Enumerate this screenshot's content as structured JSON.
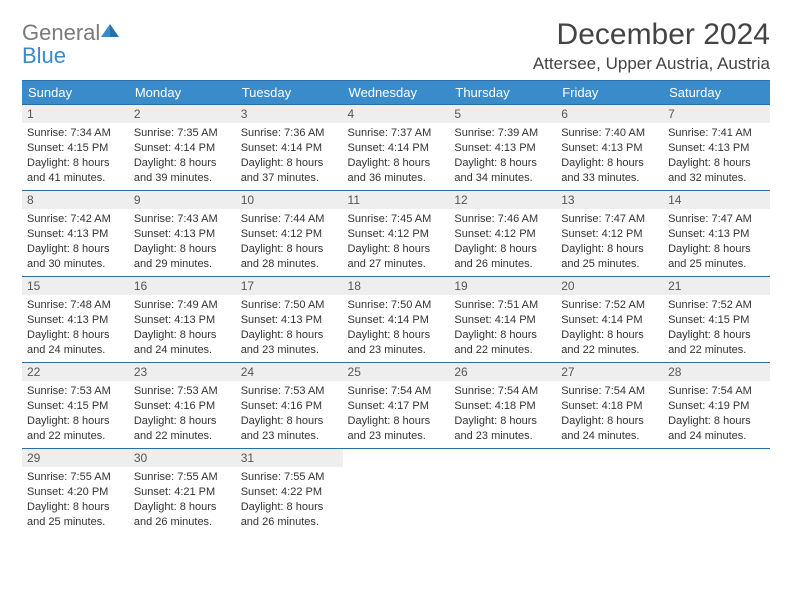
{
  "brand": {
    "general": "General",
    "blue": "Blue"
  },
  "title": "December 2024",
  "location": "Attersee, Upper Austria, Austria",
  "colors": {
    "header_bg": "#3a8bc9",
    "header_text": "#ffffff",
    "rule": "#2c6fa8",
    "daynum_bg": "#eeeeee",
    "body_text": "#333333"
  },
  "weekdays": [
    "Sunday",
    "Monday",
    "Tuesday",
    "Wednesday",
    "Thursday",
    "Friday",
    "Saturday"
  ],
  "weeks": [
    [
      {
        "n": "1",
        "sr": "7:34 AM",
        "ss": "4:15 PM",
        "dl": "8 hours and 41 minutes."
      },
      {
        "n": "2",
        "sr": "7:35 AM",
        "ss": "4:14 PM",
        "dl": "8 hours and 39 minutes."
      },
      {
        "n": "3",
        "sr": "7:36 AM",
        "ss": "4:14 PM",
        "dl": "8 hours and 37 minutes."
      },
      {
        "n": "4",
        "sr": "7:37 AM",
        "ss": "4:14 PM",
        "dl": "8 hours and 36 minutes."
      },
      {
        "n": "5",
        "sr": "7:39 AM",
        "ss": "4:13 PM",
        "dl": "8 hours and 34 minutes."
      },
      {
        "n": "6",
        "sr": "7:40 AM",
        "ss": "4:13 PM",
        "dl": "8 hours and 33 minutes."
      },
      {
        "n": "7",
        "sr": "7:41 AM",
        "ss": "4:13 PM",
        "dl": "8 hours and 32 minutes."
      }
    ],
    [
      {
        "n": "8",
        "sr": "7:42 AM",
        "ss": "4:13 PM",
        "dl": "8 hours and 30 minutes."
      },
      {
        "n": "9",
        "sr": "7:43 AM",
        "ss": "4:13 PM",
        "dl": "8 hours and 29 minutes."
      },
      {
        "n": "10",
        "sr": "7:44 AM",
        "ss": "4:12 PM",
        "dl": "8 hours and 28 minutes."
      },
      {
        "n": "11",
        "sr": "7:45 AM",
        "ss": "4:12 PM",
        "dl": "8 hours and 27 minutes."
      },
      {
        "n": "12",
        "sr": "7:46 AM",
        "ss": "4:12 PM",
        "dl": "8 hours and 26 minutes."
      },
      {
        "n": "13",
        "sr": "7:47 AM",
        "ss": "4:12 PM",
        "dl": "8 hours and 25 minutes."
      },
      {
        "n": "14",
        "sr": "7:47 AM",
        "ss": "4:13 PM",
        "dl": "8 hours and 25 minutes."
      }
    ],
    [
      {
        "n": "15",
        "sr": "7:48 AM",
        "ss": "4:13 PM",
        "dl": "8 hours and 24 minutes."
      },
      {
        "n": "16",
        "sr": "7:49 AM",
        "ss": "4:13 PM",
        "dl": "8 hours and 24 minutes."
      },
      {
        "n": "17",
        "sr": "7:50 AM",
        "ss": "4:13 PM",
        "dl": "8 hours and 23 minutes."
      },
      {
        "n": "18",
        "sr": "7:50 AM",
        "ss": "4:14 PM",
        "dl": "8 hours and 23 minutes."
      },
      {
        "n": "19",
        "sr": "7:51 AM",
        "ss": "4:14 PM",
        "dl": "8 hours and 22 minutes."
      },
      {
        "n": "20",
        "sr": "7:52 AM",
        "ss": "4:14 PM",
        "dl": "8 hours and 22 minutes."
      },
      {
        "n": "21",
        "sr": "7:52 AM",
        "ss": "4:15 PM",
        "dl": "8 hours and 22 minutes."
      }
    ],
    [
      {
        "n": "22",
        "sr": "7:53 AM",
        "ss": "4:15 PM",
        "dl": "8 hours and 22 minutes."
      },
      {
        "n": "23",
        "sr": "7:53 AM",
        "ss": "4:16 PM",
        "dl": "8 hours and 22 minutes."
      },
      {
        "n": "24",
        "sr": "7:53 AM",
        "ss": "4:16 PM",
        "dl": "8 hours and 23 minutes."
      },
      {
        "n": "25",
        "sr": "7:54 AM",
        "ss": "4:17 PM",
        "dl": "8 hours and 23 minutes."
      },
      {
        "n": "26",
        "sr": "7:54 AM",
        "ss": "4:18 PM",
        "dl": "8 hours and 23 minutes."
      },
      {
        "n": "27",
        "sr": "7:54 AM",
        "ss": "4:18 PM",
        "dl": "8 hours and 24 minutes."
      },
      {
        "n": "28",
        "sr": "7:54 AM",
        "ss": "4:19 PM",
        "dl": "8 hours and 24 minutes."
      }
    ],
    [
      {
        "n": "29",
        "sr": "7:55 AM",
        "ss": "4:20 PM",
        "dl": "8 hours and 25 minutes."
      },
      {
        "n": "30",
        "sr": "7:55 AM",
        "ss": "4:21 PM",
        "dl": "8 hours and 26 minutes."
      },
      {
        "n": "31",
        "sr": "7:55 AM",
        "ss": "4:22 PM",
        "dl": "8 hours and 26 minutes."
      },
      null,
      null,
      null,
      null
    ]
  ],
  "labels": {
    "sunrise": "Sunrise: ",
    "sunset": "Sunset: ",
    "daylight": "Daylight: "
  }
}
